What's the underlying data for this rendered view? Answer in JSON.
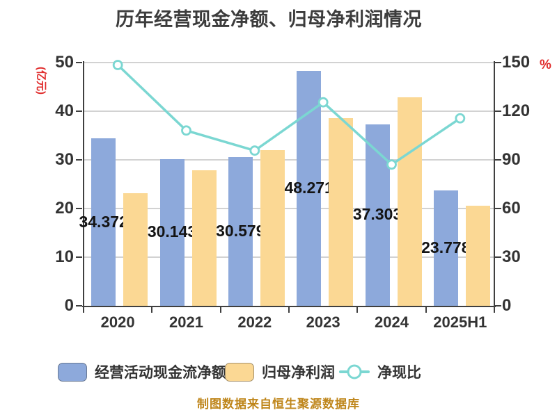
{
  "title": "历年经营现金净额、归母净利润情况",
  "source_note": "制图数据来自恒生聚源数据库",
  "axes": {
    "left_unit": "(亿元)",
    "right_unit": "%",
    "left_ticks": [
      0,
      10,
      20,
      30,
      40,
      50
    ],
    "right_ticks": [
      0,
      30,
      60,
      90,
      120,
      150
    ]
  },
  "colors": {
    "bar_blue": "#8da9db",
    "bar_orange": "#fbd894",
    "line_teal": "#7bd7d2",
    "axis_dark": "#3f3f3f",
    "gridline": "#d2d2d2",
    "unit_red": "#e02b2b",
    "source_gold": "#bf861b"
  },
  "chart_data": {
    "type": "bar+line",
    "title": "历年经营现金净额、归母净利润情况",
    "categories": [
      "2020",
      "2021",
      "2022",
      "2023",
      "2024",
      "2025H1"
    ],
    "series": [
      {
        "name": "经营活动现金流净额",
        "type": "bar",
        "axis": "left",
        "color": "#8da9db",
        "values": [
          34.372,
          30.143,
          30.579,
          48.271,
          37.303,
          23.778
        ],
        "labels": [
          "34.372",
          "30.143",
          "30.579",
          "48.271",
          "37.303",
          "23.778"
        ]
      },
      {
        "name": "归母净利润",
        "type": "bar",
        "axis": "left",
        "color": "#fbd894",
        "values": [
          23.2,
          27.9,
          32.0,
          38.6,
          42.9,
          20.6
        ]
      },
      {
        "name": "净现比",
        "type": "line",
        "axis": "right",
        "color": "#7bd7d2",
        "values": [
          148.5,
          108.1,
          95.7,
          125.5,
          87.1,
          115.6
        ]
      }
    ],
    "ylabel_left": "(亿元)",
    "ylabel_right": "%",
    "ylim_left": [
      0,
      50
    ],
    "ylim_right": [
      0,
      150
    ],
    "grid": true,
    "legend_position": "bottom"
  }
}
